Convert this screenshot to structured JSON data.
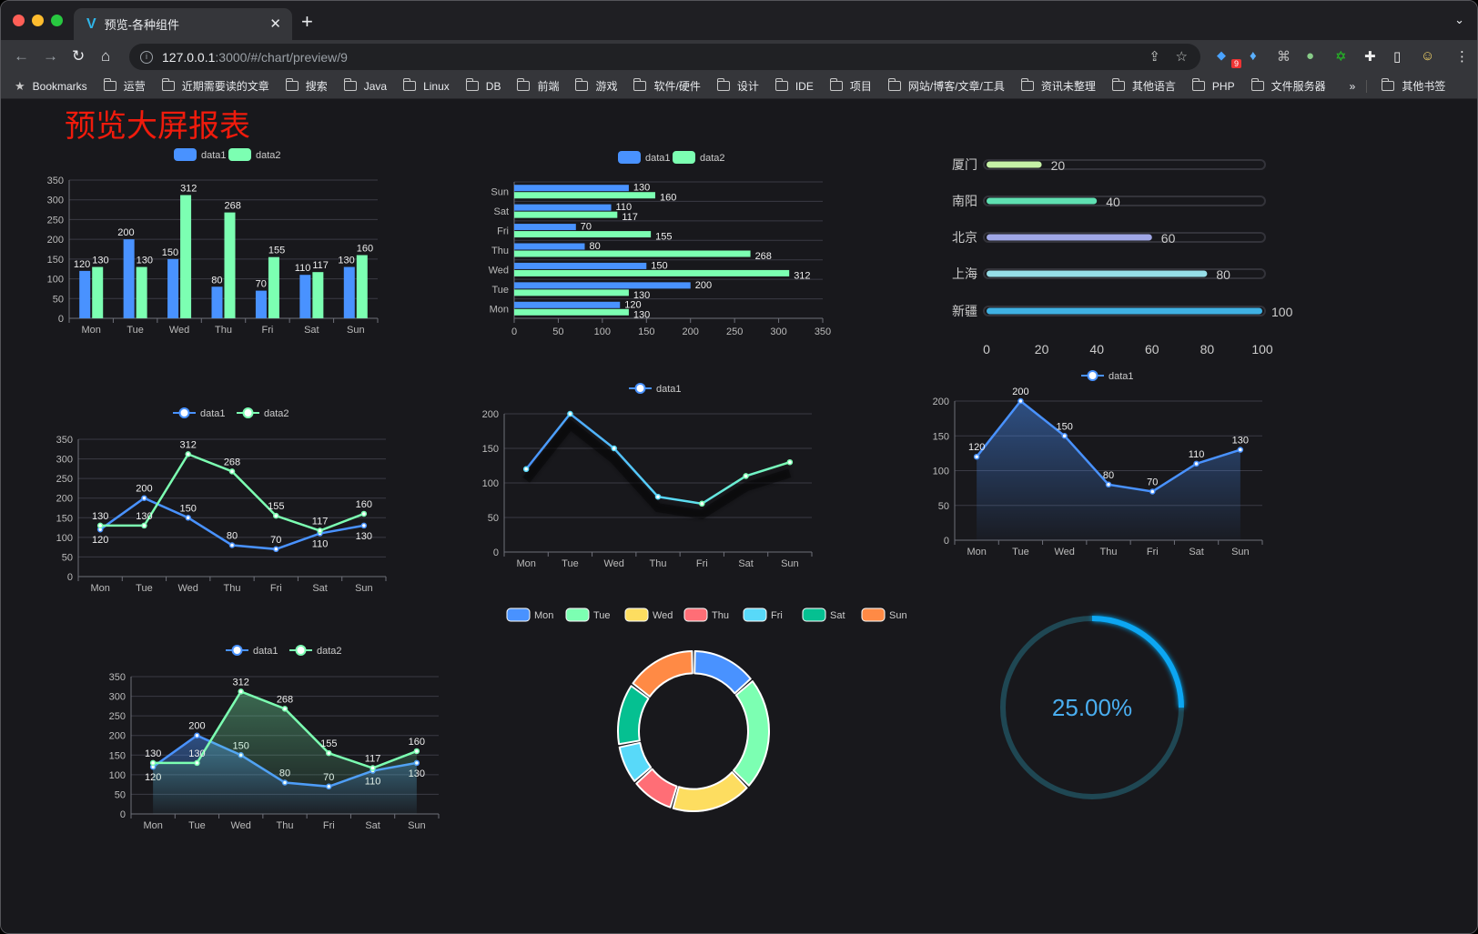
{
  "browser": {
    "tab_title": "预览-各种组件",
    "url_host": "127.0.0.1",
    "url_rest": ":3000/#/chart/preview/9",
    "extension_badge": "9",
    "bookmarks": [
      "Bookmarks",
      "运营",
      "近期需要读的文章",
      "搜索",
      "Java",
      "Linux",
      "DB",
      "前端",
      "游戏",
      "软件/硬件",
      "设计",
      "IDE",
      "项目",
      "网站/博客/文章/工具",
      "资讯未整理",
      "其他语言",
      "PHP",
      "文件服务器"
    ],
    "overflow": "»",
    "other_bookmarks": "其他书签"
  },
  "page_title": "预览大屏报表",
  "colors": {
    "blue": "#4992ff",
    "green": "#7cffb2",
    "yellow": "#fddd60",
    "red": "#ff6e76",
    "cyan": "#58d9f9",
    "teal": "#05c091",
    "orange": "#ff8a45",
    "title": "#f01b0c"
  },
  "chart_data": [
    {
      "type": "bar",
      "orientation": "vertical",
      "legend": [
        "data1",
        "data2"
      ],
      "categories": [
        "Mon",
        "Tue",
        "Wed",
        "Thu",
        "Fri",
        "Sat",
        "Sun"
      ],
      "series": [
        {
          "name": "data1",
          "values": [
            120,
            200,
            150,
            80,
            70,
            110,
            130
          ]
        },
        {
          "name": "data2",
          "values": [
            130,
            130,
            312,
            268,
            155,
            117,
            160
          ]
        }
      ],
      "yticks": [
        "0",
        "50",
        "100",
        "150",
        "200",
        "250",
        "300",
        "350"
      ],
      "ylim": [
        0,
        350
      ],
      "grid": true,
      "data_labels": true
    },
    {
      "type": "bar",
      "orientation": "horizontal",
      "legend": [
        "data1",
        "data2"
      ],
      "categories": [
        "Mon",
        "Tue",
        "Wed",
        "Thu",
        "Fri",
        "Sat",
        "Sun"
      ],
      "series": [
        {
          "name": "data1",
          "values": [
            120,
            200,
            150,
            80,
            70,
            110,
            130
          ]
        },
        {
          "name": "data2",
          "values": [
            130,
            130,
            312,
            268,
            155,
            117,
            160
          ]
        }
      ],
      "xticks": [
        "0",
        "50",
        "100",
        "150",
        "200",
        "250",
        "300",
        "350"
      ],
      "xlim": [
        0,
        350
      ],
      "grid": true,
      "data_labels": true
    },
    {
      "type": "bar",
      "orientation": "horizontal-progress",
      "categories": [
        "厦门",
        "南阳",
        "北京",
        "上海",
        "新疆"
      ],
      "values": [
        20,
        40,
        60,
        80,
        100
      ],
      "colors": [
        "#c6f2a6",
        "#5fe0b2",
        "#a0a7e6",
        "#96dee8",
        "#3fb1e3"
      ],
      "xticks": [
        "0",
        "20",
        "40",
        "60",
        "80",
        "100"
      ],
      "xlim": [
        0,
        100
      ]
    },
    {
      "type": "line",
      "legend": [
        "data1",
        "data2"
      ],
      "categories": [
        "Mon",
        "Tue",
        "Wed",
        "Thu",
        "Fri",
        "Sat",
        "Sun"
      ],
      "series": [
        {
          "name": "data1",
          "values": [
            120,
            200,
            150,
            80,
            70,
            110,
            130
          ]
        },
        {
          "name": "data2",
          "values": [
            130,
            130,
            312,
            268,
            155,
            117,
            160
          ]
        }
      ],
      "yticks": [
        "0",
        "50",
        "100",
        "150",
        "200",
        "250",
        "300",
        "350"
      ],
      "ylim": [
        0,
        350
      ],
      "grid": true,
      "data_labels": true
    },
    {
      "type": "line",
      "legend": [
        "data1"
      ],
      "categories": [
        "Mon",
        "Tue",
        "Wed",
        "Thu",
        "Fri",
        "Sat",
        "Sun"
      ],
      "series": [
        {
          "name": "data1",
          "values": [
            120,
            200,
            150,
            80,
            70,
            110,
            130
          ]
        }
      ],
      "yticks": [
        "0",
        "50",
        "100",
        "150",
        "200"
      ],
      "ylim": [
        0,
        200
      ],
      "grid": true,
      "data_labels": false,
      "gradient_line": true
    },
    {
      "type": "area",
      "legend": [
        "data1"
      ],
      "categories": [
        "Mon",
        "Tue",
        "Wed",
        "Thu",
        "Fri",
        "Sat",
        "Sun"
      ],
      "series": [
        {
          "name": "data1",
          "values": [
            120,
            200,
            150,
            80,
            70,
            110,
            130
          ]
        }
      ],
      "yticks": [
        "0",
        "50",
        "100",
        "150",
        "200"
      ],
      "ylim": [
        0,
        200
      ],
      "grid": true,
      "data_labels": true
    },
    {
      "type": "area",
      "legend": [
        "data1",
        "data2"
      ],
      "categories": [
        "Mon",
        "Tue",
        "Wed",
        "Thu",
        "Fri",
        "Sat",
        "Sun"
      ],
      "series": [
        {
          "name": "data1",
          "values": [
            120,
            200,
            150,
            80,
            70,
            110,
            130
          ]
        },
        {
          "name": "data2",
          "values": [
            130,
            130,
            312,
            268,
            155,
            117,
            160
          ]
        }
      ],
      "yticks": [
        "0",
        "50",
        "100",
        "150",
        "200",
        "250",
        "300",
        "350"
      ],
      "ylim": [
        0,
        350
      ],
      "grid": true,
      "data_labels": true
    },
    {
      "type": "pie",
      "donut": true,
      "legend": [
        "Mon",
        "Tue",
        "Wed",
        "Thu",
        "Fri",
        "Sat",
        "Sun"
      ],
      "categories": [
        "Mon",
        "Tue",
        "Wed",
        "Thu",
        "Fri",
        "Sat",
        "Sun"
      ],
      "values": [
        120,
        200,
        150,
        80,
        70,
        110,
        130
      ]
    },
    {
      "type": "gauge",
      "value": 25,
      "label": "25.00%"
    }
  ]
}
